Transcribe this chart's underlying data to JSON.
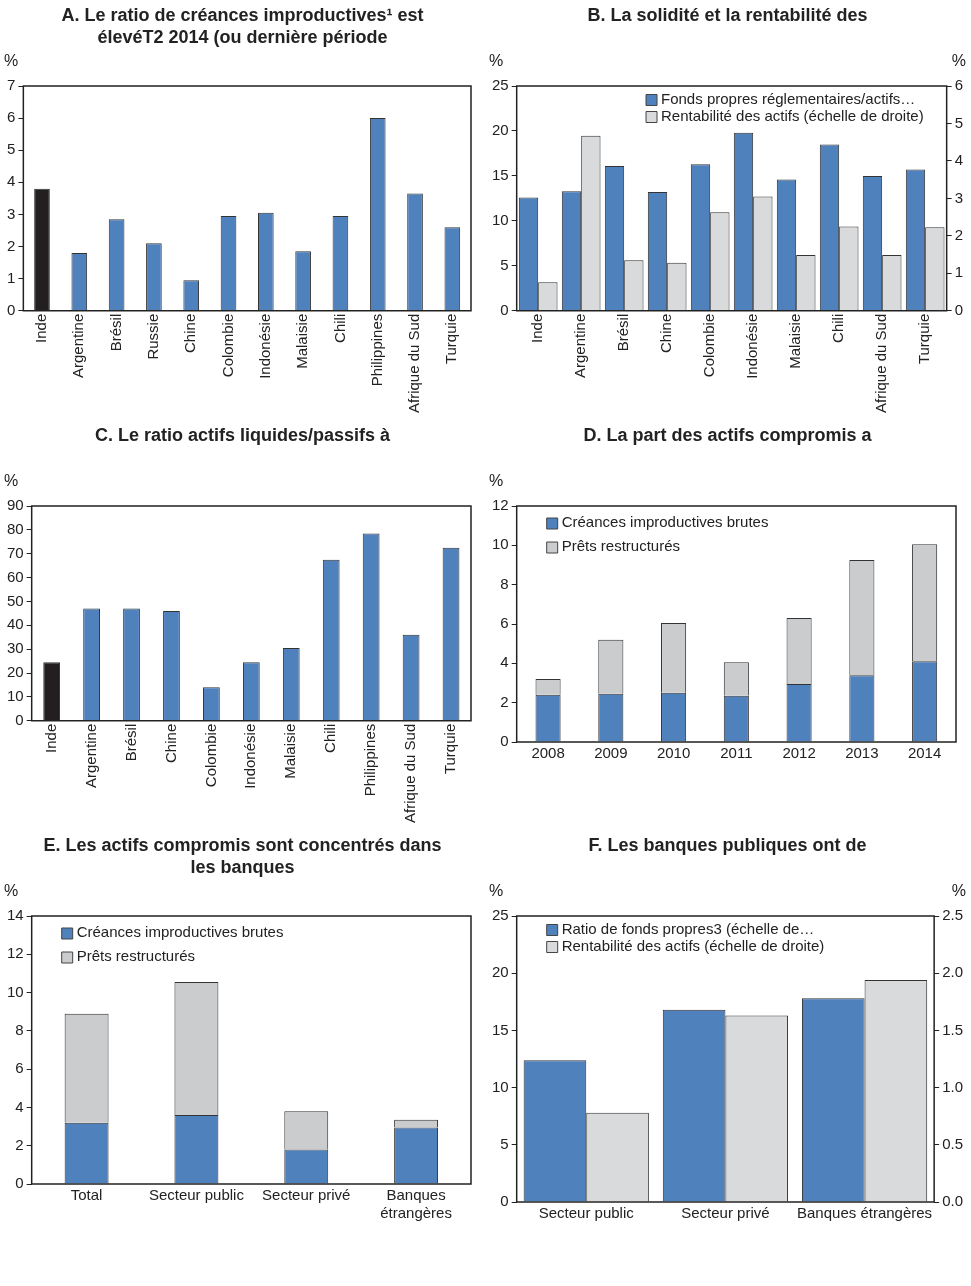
{
  "chart_data": [
    {
      "type": "bar",
      "title": "A. Le ratio de créances improductives¹ est élevéT2 2014 (ou dernière période",
      "ylabel": "%",
      "categories": [
        "Inde",
        "Argentine",
        "Brésil",
        "Russie",
        "Chine",
        "Colombie",
        "Indonésie",
        "Malaisie",
        "Chili",
        "Philippines",
        "Afrique du Sud",
        "Turquie"
      ],
      "values": [
        3.8,
        1.8,
        2.85,
        2.1,
        0.95,
        2.95,
        3.05,
        1.85,
        2.95,
        6.0,
        3.65,
        2.6
      ],
      "colors": [
        "#231f20",
        "#4f81bd",
        "#4f81bd",
        "#4f81bd",
        "#4f81bd",
        "#4f81bd",
        "#4f81bd",
        "#4f81bd",
        "#4f81bd",
        "#4f81bd",
        "#4f81bd",
        "#4f81bd"
      ],
      "ylim": [
        0,
        7
      ],
      "yticks": [
        0,
        1,
        2,
        3,
        4,
        5,
        6,
        7
      ]
    },
    {
      "type": "bar",
      "title": "B. La solidité et la rentabilité des",
      "ylabel": "%",
      "y2label": "%",
      "categories": [
        "Inde",
        "Argentine",
        "Brésil",
        "Chine",
        "Colombie",
        "Indonésie",
        "Malaisie",
        "Chili",
        "Afrique du Sud",
        "Turquie"
      ],
      "series": [
        {
          "name": "Fonds propres réglementaires/actifs…",
          "color": "#4f81bd",
          "values": [
            12.6,
            13.3,
            16.1,
            13.2,
            16.3,
            19.8,
            14.6,
            18.5,
            15.0,
            15.7
          ]
        },
        {
          "name": "Rentabilité des actifs (échelle de droite)",
          "color": "#d9dadc",
          "axis": "y2",
          "values": [
            0.76,
            4.67,
            1.35,
            1.28,
            2.63,
            3.05,
            1.49,
            2.25,
            1.49,
            2.23
          ]
        }
      ],
      "ylim": [
        0,
        25
      ],
      "yticks": [
        0,
        5,
        10,
        15,
        20,
        25
      ],
      "y2lim": [
        0,
        6
      ],
      "y2ticks": [
        0,
        1,
        2,
        3,
        4,
        5,
        6
      ],
      "legend": "top right"
    },
    {
      "type": "bar",
      "title": "C. Le ratio actifs liquides/passifs à",
      "ylabel": "%",
      "categories": [
        "Inde",
        "Argentine",
        "Brésil",
        "Chine",
        "Colombie",
        "Indonésie",
        "Malaisie",
        "Chili",
        "Philippines",
        "Afrique du Sud",
        "Turquie"
      ],
      "values": [
        24.5,
        47,
        47,
        46,
        14,
        24.5,
        30.5,
        67.5,
        78.5,
        36,
        72.5
      ],
      "colors": [
        "#231f20",
        "#4f81bd",
        "#4f81bd",
        "#4f81bd",
        "#4f81bd",
        "#4f81bd",
        "#4f81bd",
        "#4f81bd",
        "#4f81bd",
        "#4f81bd",
        "#4f81bd"
      ],
      "ylim": [
        0,
        90
      ],
      "yticks": [
        0,
        10,
        20,
        30,
        40,
        50,
        60,
        70,
        80,
        90
      ]
    },
    {
      "type": "bar",
      "title": "D. La part des actifs compromis a",
      "ylabel": "%",
      "categories": [
        "2008",
        "2009",
        "2010",
        "2011",
        "2012",
        "2013",
        "2014"
      ],
      "stacked": true,
      "series": [
        {
          "name": "Créances improductives brutes",
          "color": "#4f81bd",
          "values": [
            2.4,
            2.45,
            2.5,
            2.35,
            2.95,
            3.4,
            4.1
          ]
        },
        {
          "name": "Prêts restructurés",
          "color": "#cbccce",
          "values": [
            0.8,
            2.75,
            3.55,
            1.7,
            3.35,
            5.85,
            5.95
          ]
        }
      ],
      "ylim": [
        0,
        12
      ],
      "yticks": [
        0,
        2,
        4,
        6,
        8,
        10,
        12
      ],
      "legend": "top left"
    },
    {
      "type": "bar",
      "title": "E. Les actifs compromis sont concentrés dans les banques",
      "ylabel": "%",
      "categories": [
        "Total",
        "Secteur public",
        "Secteur privé",
        "Banques étrangères"
      ],
      "stacked": true,
      "series": [
        {
          "name": "Créances improductives brutes",
          "color": "#4f81bd",
          "values": [
            3.2,
            3.6,
            1.8,
            2.95
          ]
        },
        {
          "name": "Prêts restructurés",
          "color": "#cbccce",
          "values": [
            5.7,
            6.95,
            2.0,
            0.4
          ]
        }
      ],
      "ylim": [
        0,
        14
      ],
      "yticks": [
        0,
        2,
        4,
        6,
        8,
        10,
        12,
        14
      ],
      "legend": "top left"
    },
    {
      "type": "bar",
      "title": "F. Les banques publiques ont de",
      "ylabel": "%",
      "y2label": "%",
      "categories": [
        "Secteur public",
        "Secteur privé",
        "Banques étrangères"
      ],
      "series": [
        {
          "name": "Ratio de fonds propres3 (échelle de…",
          "color": "#4f81bd",
          "values": [
            12.4,
            16.8,
            17.8
          ]
        },
        {
          "name": "Rentabilité des actifs (échelle de droite)",
          "color": "#d9dadc",
          "axis": "y2",
          "values": [
            0.78,
            1.63,
            1.94
          ]
        }
      ],
      "ylim": [
        0,
        25
      ],
      "yticks": [
        0,
        5,
        10,
        15,
        20,
        25
      ],
      "y2lim": [
        0,
        2.5
      ],
      "y2ticks": [
        {
          "value": 0,
          "label": "0.0"
        },
        {
          "value": 0.5,
          "label": "0.5"
        },
        {
          "value": 1,
          "label": "1.0"
        },
        {
          "value": 1.5,
          "label": "1.5"
        },
        {
          "value": 2,
          "label": "2.0"
        },
        {
          "value": 2.5,
          "label": "2.5"
        }
      ],
      "legend": "top left"
    }
  ]
}
